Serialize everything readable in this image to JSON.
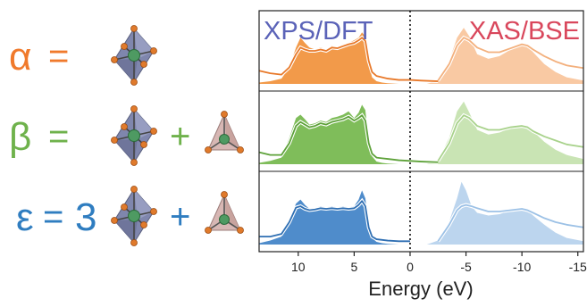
{
  "equations": [
    {
      "id": "alpha",
      "symbol": "α",
      "equals": "=",
      "coefficient": "",
      "plus": "",
      "color": "#f07a2c",
      "units": [
        "octahedron"
      ]
    },
    {
      "id": "beta",
      "symbol": "β",
      "equals": "=",
      "coefficient": "",
      "plus": "+",
      "color": "#6fb24c",
      "units": [
        "octahedron",
        "tetrahedron"
      ]
    },
    {
      "id": "epsilon",
      "symbol": "ε",
      "equals": "=",
      "coefficient": "3",
      "plus": "+",
      "color": "#2f7dc0",
      "units": [
        "octahedron",
        "tetrahedron"
      ]
    }
  ],
  "chart_data": {
    "type": "area",
    "xlabel": "Energy (eV)",
    "x_ticks": [
      "10",
      "5",
      "0",
      "-5",
      "-10",
      "-15"
    ],
    "x_tick_values": [
      10,
      5,
      0,
      -5,
      -10,
      -15
    ],
    "xlim": [
      13.5,
      -15.5
    ],
    "x_reversed": true,
    "fermi_line_x": 0,
    "annotations": [
      {
        "text": "XPS/DFT",
        "color": "#5b63b8",
        "position": "top-left"
      },
      {
        "text": "XAS/BSE",
        "color": "#d9475c",
        "position": "top-right"
      }
    ],
    "panels": [
      {
        "name": "α",
        "color_dark": "#f29a4a",
        "color_light": "#f9c9a3",
        "line_dark": "#e8792a",
        "line_light": "#f3b07d",
        "left_fill": {
          "x": [
            13.5,
            12.5,
            11.5,
            10.8,
            10.2,
            9.8,
            9.4,
            9.0,
            8.5,
            8.0,
            7.5,
            7.0,
            6.5,
            6.0,
            5.5,
            5.0,
            4.6,
            4.3,
            4.0,
            3.7,
            3.4,
            3.0,
            2.5,
            2.0,
            1.0,
            0.0
          ],
          "y": [
            0.02,
            0.04,
            0.08,
            0.25,
            0.55,
            0.7,
            0.62,
            0.55,
            0.52,
            0.55,
            0.52,
            0.58,
            0.55,
            0.6,
            0.62,
            0.66,
            0.7,
            0.78,
            0.72,
            0.3,
            0.1,
            0.04,
            0.02,
            0.01,
            0.0,
            0.0
          ]
        },
        "left_line": {
          "x": [
            13.5,
            12.5,
            11.5,
            10.8,
            10.2,
            9.8,
            9.4,
            9.0,
            8.5,
            8.0,
            7.5,
            7.0,
            6.5,
            6.0,
            5.5,
            5.0,
            4.6,
            4.3,
            4.0,
            3.7,
            3.4,
            3.0,
            2.5,
            2.0,
            1.0,
            0.0,
            -1.0,
            -2.5
          ],
          "y": [
            0.2,
            0.16,
            0.14,
            0.25,
            0.45,
            0.55,
            0.52,
            0.5,
            0.5,
            0.52,
            0.5,
            0.55,
            0.54,
            0.57,
            0.6,
            0.62,
            0.66,
            0.7,
            0.65,
            0.35,
            0.18,
            0.12,
            0.1,
            0.08,
            0.06,
            0.06,
            0.05,
            0.04
          ]
        },
        "right_fill": {
          "x": [
            -0.5,
            -1.5,
            -2.5,
            -3.5,
            -4.2,
            -4.8,
            -5.3,
            -6.0,
            -7.0,
            -8.0,
            -9.0,
            -10.0,
            -10.5,
            -11.0,
            -12.0,
            -13.0,
            -14.0,
            -15.5
          ],
          "y": [
            0.0,
            0.0,
            0.05,
            0.35,
            0.7,
            0.85,
            0.72,
            0.45,
            0.38,
            0.42,
            0.52,
            0.6,
            0.58,
            0.48,
            0.3,
            0.18,
            0.1,
            0.05
          ]
        },
        "right_line": {
          "x": [
            -2.5,
            -3.5,
            -4.2,
            -4.8,
            -5.3,
            -6.0,
            -7.0,
            -8.0,
            -9.0,
            -10.0,
            -10.5,
            -11.0,
            -12.0,
            -13.0,
            -14.0,
            -15.5
          ],
          "y": [
            0.05,
            0.3,
            0.58,
            0.7,
            0.66,
            0.55,
            0.48,
            0.48,
            0.54,
            0.6,
            0.58,
            0.52,
            0.42,
            0.34,
            0.28,
            0.24
          ]
        }
      },
      {
        "name": "β",
        "color_dark": "#7fbd5a",
        "color_light": "#c9e4b4",
        "line_dark": "#5ea23a",
        "line_light": "#a8d28b",
        "left_fill": {
          "x": [
            13.5,
            12.5,
            11.5,
            10.8,
            10.2,
            9.8,
            9.4,
            9.0,
            8.5,
            8.0,
            7.5,
            7.0,
            6.5,
            6.0,
            5.5,
            5.0,
            4.6,
            4.3,
            4.0,
            3.7,
            3.4,
            3.0,
            2.5,
            2.0,
            1.0,
            0.0
          ],
          "y": [
            0.02,
            0.05,
            0.1,
            0.4,
            0.7,
            0.75,
            0.68,
            0.6,
            0.62,
            0.66,
            0.64,
            0.7,
            0.72,
            0.75,
            0.8,
            0.7,
            0.78,
            0.9,
            0.82,
            0.35,
            0.12,
            0.04,
            0.02,
            0.01,
            0.0,
            0.0
          ]
        },
        "left_line": {
          "x": [
            13.5,
            12.5,
            11.5,
            10.8,
            10.2,
            9.8,
            9.4,
            9.0,
            8.5,
            8.0,
            7.5,
            7.0,
            6.5,
            6.0,
            5.5,
            5.0,
            4.6,
            4.3,
            4.0,
            3.7,
            3.4,
            3.0,
            2.5,
            2.0,
            1.0,
            0.0,
            -1.0,
            -2.5
          ],
          "y": [
            0.18,
            0.14,
            0.14,
            0.32,
            0.58,
            0.64,
            0.6,
            0.56,
            0.58,
            0.62,
            0.6,
            0.64,
            0.66,
            0.68,
            0.72,
            0.66,
            0.7,
            0.74,
            0.66,
            0.32,
            0.16,
            0.1,
            0.09,
            0.08,
            0.06,
            0.05,
            0.04,
            0.03
          ]
        },
        "right_fill": {
          "x": [
            -0.5,
            -1.5,
            -2.5,
            -3.5,
            -4.2,
            -4.8,
            -5.3,
            -6.0,
            -7.0,
            -8.0,
            -9.0,
            -10.0,
            -10.5,
            -11.0,
            -12.0,
            -13.0,
            -14.0,
            -15.5
          ],
          "y": [
            0.0,
            0.0,
            0.06,
            0.4,
            0.8,
            0.95,
            0.78,
            0.52,
            0.45,
            0.48,
            0.55,
            0.6,
            0.58,
            0.5,
            0.34,
            0.22,
            0.14,
            0.08
          ]
        },
        "right_line": {
          "x": [
            -2.5,
            -3.5,
            -4.2,
            -4.8,
            -5.3,
            -6.0,
            -7.0,
            -8.0,
            -9.0,
            -10.0,
            -10.5,
            -11.0,
            -12.0,
            -13.0,
            -14.0,
            -15.5
          ],
          "y": [
            0.05,
            0.32,
            0.62,
            0.74,
            0.7,
            0.58,
            0.52,
            0.52,
            0.56,
            0.58,
            0.56,
            0.5,
            0.42,
            0.36,
            0.3,
            0.26
          ]
        }
      },
      {
        "name": "ε",
        "color_dark": "#4f8ccb",
        "color_light": "#bcd5ee",
        "line_dark": "#2f6fb3",
        "line_light": "#9cc1e6",
        "left_fill": {
          "x": [
            13.5,
            12.5,
            11.5,
            10.8,
            10.2,
            9.8,
            9.4,
            9.0,
            8.5,
            8.0,
            7.5,
            7.0,
            6.5,
            6.0,
            5.5,
            5.0,
            4.6,
            4.3,
            4.0,
            3.7,
            3.4,
            3.0,
            2.5,
            2.0,
            1.0,
            0.0
          ],
          "y": [
            0.02,
            0.06,
            0.12,
            0.38,
            0.62,
            0.68,
            0.6,
            0.54,
            0.55,
            0.58,
            0.56,
            0.58,
            0.56,
            0.58,
            0.56,
            0.58,
            0.68,
            0.82,
            0.7,
            0.28,
            0.1,
            0.04,
            0.02,
            0.01,
            0.0,
            0.0
          ]
        },
        "left_line": {
          "x": [
            13.5,
            12.5,
            11.5,
            10.8,
            10.2,
            9.8,
            9.4,
            9.0,
            8.5,
            8.0,
            7.5,
            7.0,
            6.5,
            6.0,
            5.5,
            5.0,
            4.6,
            4.3,
            4.0,
            3.7,
            3.4,
            3.0,
            2.5,
            2.0,
            1.0,
            0.0
          ],
          "y": [
            0.12,
            0.12,
            0.16,
            0.34,
            0.56,
            0.58,
            0.54,
            0.52,
            0.53,
            0.55,
            0.54,
            0.55,
            0.54,
            0.55,
            0.54,
            0.55,
            0.6,
            0.66,
            0.58,
            0.26,
            0.12,
            0.08,
            0.07,
            0.06,
            0.05,
            0.05
          ]
        },
        "right_fill": {
          "x": [
            -0.5,
            -1.5,
            -2.5,
            -3.5,
            -4.2,
            -4.6,
            -5.0,
            -5.5,
            -6.0,
            -7.0,
            -8.0,
            -9.0,
            -10.0,
            -10.5,
            -11.0,
            -12.0,
            -13.0,
            -14.0,
            -15.5
          ],
          "y": [
            0.0,
            0.0,
            0.06,
            0.35,
            0.7,
            0.95,
            0.82,
            0.58,
            0.48,
            0.44,
            0.46,
            0.52,
            0.55,
            0.52,
            0.44,
            0.3,
            0.18,
            0.1,
            0.05
          ]
        },
        "right_line": {
          "x": [
            -2.5,
            -3.5,
            -4.2,
            -4.6,
            -5.0,
            -5.5,
            -6.0,
            -7.0,
            -8.0,
            -9.0,
            -10.0,
            -10.5,
            -11.0,
            -12.0,
            -13.0,
            -14.0,
            -15.5
          ],
          "y": [
            0.05,
            0.3,
            0.52,
            0.58,
            0.6,
            0.58,
            0.55,
            0.5,
            0.5,
            0.52,
            0.54,
            0.52,
            0.48,
            0.4,
            0.34,
            0.3,
            0.26
          ]
        }
      }
    ]
  }
}
